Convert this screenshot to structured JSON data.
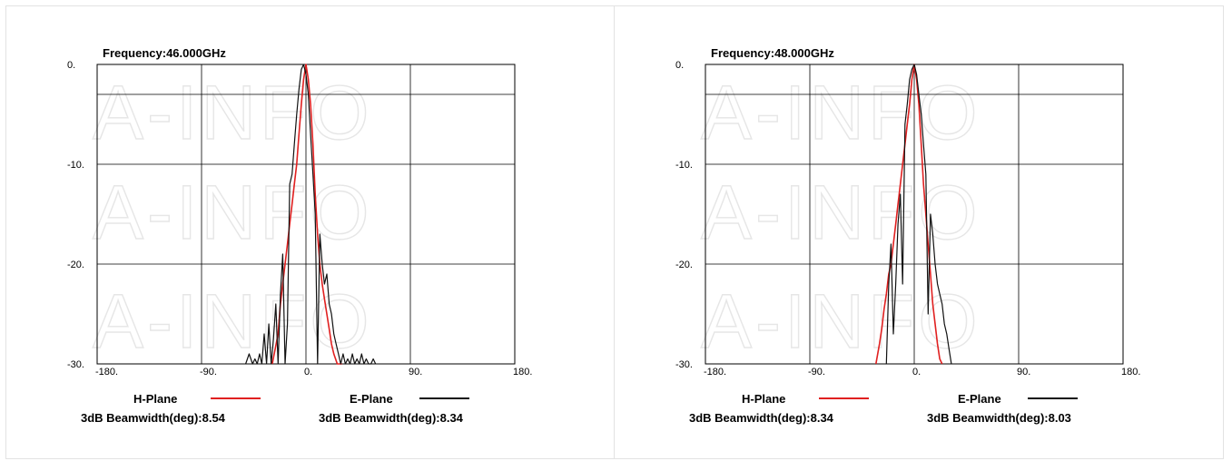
{
  "watermark": "A-INFO",
  "chart_data": [
    {
      "type": "line",
      "title": "Frequency:46.000GHz",
      "xlim": [
        -180,
        180
      ],
      "ylim": [
        -30,
        0
      ],
      "x_ticks": [
        -180,
        -90,
        0,
        90,
        180
      ],
      "x_tick_labels": [
        "-180.",
        "-90.",
        "0.",
        "90.",
        "180."
      ],
      "y_ticks": [
        0,
        -10,
        -20,
        -30
      ],
      "y_tick_labels": [
        "0.",
        "-10.",
        "-20.",
        "-30."
      ],
      "reference_line_db": -3,
      "grid": true,
      "legend": [
        {
          "label": "H-Plane",
          "color": "#e02020",
          "beamwidth_text": "3dB Beamwidth(deg):8.54"
        },
        {
          "label": "E-Plane",
          "color": "#111111",
          "beamwidth_text": "3dB Beamwidth(deg):8.34"
        }
      ],
      "series": [
        {
          "name": "H-Plane",
          "color": "#e02020",
          "x": [
            -29,
            -24,
            -22,
            -20,
            -18,
            -16,
            -14,
            -12,
            -10,
            -8,
            -6,
            -4,
            -2,
            0,
            2,
            4,
            6,
            8,
            10,
            12,
            14,
            16,
            18,
            20,
            22,
            24,
            27,
            31
          ],
          "y": [
            -30,
            -27,
            -24,
            -22,
            -20,
            -18,
            -16,
            -14,
            -12,
            -10,
            -7,
            -4,
            -1.5,
            0,
            -1.5,
            -4,
            -8,
            -13,
            -17,
            -20,
            -22,
            -23.5,
            -25,
            -26.5,
            -28,
            -29,
            -30,
            -30
          ]
        },
        {
          "name": "E-Plane",
          "color": "#111111",
          "x": [
            -52,
            -49,
            -46,
            -44,
            -42,
            -40,
            -38,
            -36,
            -34,
            -32,
            -30,
            -28,
            -26,
            -24,
            -22,
            -20,
            -18,
            -16,
            -14,
            -12,
            -10,
            -8,
            -6,
            -4,
            -2,
            0,
            2,
            4,
            6,
            8,
            10,
            12,
            14,
            16,
            18,
            20,
            22,
            24,
            26,
            28,
            30,
            32,
            34,
            36,
            38,
            40,
            42,
            44,
            46,
            48,
            50,
            52,
            54,
            56,
            58,
            60
          ],
          "y": [
            -30,
            -29,
            -30,
            -29.5,
            -30,
            -29,
            -30,
            -27,
            -30,
            -26,
            -30,
            -27.5,
            -24,
            -30,
            -23,
            -19,
            -30,
            -26,
            -12,
            -11,
            -8,
            -5,
            -2.5,
            -0.5,
            0,
            -1,
            -3,
            -7,
            -11,
            -15,
            -30,
            -17,
            -20,
            -22,
            -21,
            -24,
            -25,
            -27,
            -28,
            -29,
            -30,
            -29,
            -30,
            -29.5,
            -30,
            -29,
            -30,
            -29.5,
            -30,
            -29,
            -30,
            -29.5,
            -30,
            -30,
            -29.5,
            -30
          ]
        }
      ]
    },
    {
      "type": "line",
      "title": "Frequency:48.000GHz",
      "xlim": [
        -180,
        180
      ],
      "ylim": [
        -30,
        0
      ],
      "x_ticks": [
        -180,
        -90,
        0,
        90,
        180
      ],
      "x_tick_labels": [
        "-180.",
        "-90.",
        "0.",
        "90.",
        "180."
      ],
      "y_ticks": [
        0,
        -10,
        -20,
        -30
      ],
      "y_tick_labels": [
        "0.",
        "-10.",
        "-20.",
        "-30."
      ],
      "reference_line_db": -3,
      "grid": true,
      "legend": [
        {
          "label": "H-Plane",
          "color": "#e02020",
          "beamwidth_text": "3dB Beamwidth(deg):8.34"
        },
        {
          "label": "E-Plane",
          "color": "#111111",
          "beamwidth_text": "3dB Beamwidth(deg):8.03"
        }
      ],
      "series": [
        {
          "name": "H-Plane",
          "color": "#e02020",
          "x": [
            -33,
            -30,
            -28,
            -26,
            -24,
            -22,
            -20,
            -18,
            -16,
            -14,
            -12,
            -10,
            -8,
            -6,
            -4,
            -2,
            0,
            2,
            4,
            6,
            8,
            10,
            12,
            14,
            16,
            18,
            20,
            22,
            24
          ],
          "y": [
            -30,
            -28,
            -26.5,
            -24.5,
            -23,
            -21,
            -20,
            -18,
            -16,
            -14,
            -12,
            -10,
            -8,
            -6,
            -4,
            -1.5,
            0,
            -1.5,
            -4,
            -8,
            -12,
            -15,
            -18,
            -21,
            -24,
            -26,
            -28,
            -29.5,
            -30
          ]
        },
        {
          "name": "E-Plane",
          "color": "#111111",
          "x": [
            -24,
            -22,
            -20,
            -18,
            -16,
            -14,
            -12,
            -10,
            -8,
            -6,
            -4,
            -2,
            0,
            2,
            4,
            6,
            8,
            10,
            12,
            14,
            16,
            18,
            20,
            22,
            24,
            26,
            28,
            30,
            32
          ],
          "y": [
            -30,
            -22,
            -18,
            -27,
            -22,
            -16,
            -13,
            -22,
            -6,
            -4,
            -1.5,
            -0.5,
            0,
            -1,
            -3,
            -5,
            -8,
            -11,
            -25,
            -15,
            -17,
            -20,
            -22,
            -23,
            -24,
            -26,
            -27,
            -28.5,
            -30
          ]
        }
      ]
    }
  ]
}
